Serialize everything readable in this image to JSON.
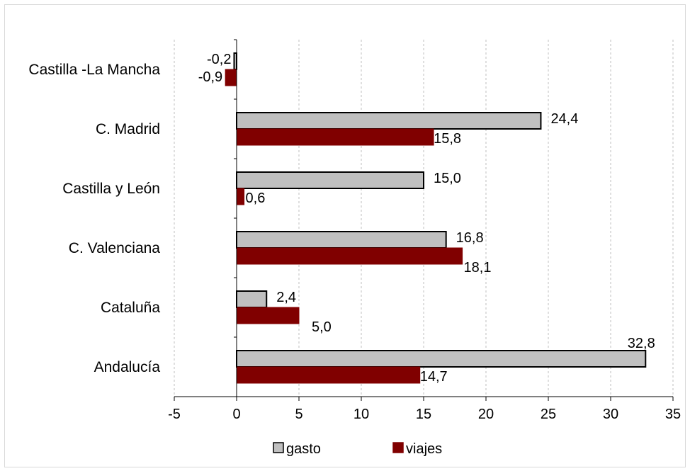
{
  "chart_data": {
    "type": "bar",
    "orientation": "horizontal",
    "categories": [
      "Castilla -La Mancha",
      "C. Madrid",
      "Castilla y León",
      "C. Valenciana",
      "Cataluña",
      "Andalucía"
    ],
    "series": [
      {
        "name": "gasto",
        "values": [
          -0.2,
          24.4,
          15.0,
          16.8,
          2.4,
          32.8
        ],
        "labels": [
          "-0,2",
          "24,4",
          "15,0",
          "16,8",
          "2,4",
          "32,8"
        ],
        "color": "#c0c0c0",
        "stroke": "#000000"
      },
      {
        "name": "viajes",
        "values": [
          -0.9,
          15.8,
          0.6,
          18.1,
          5.0,
          14.7
        ],
        "labels": [
          "-0,9",
          "15,8",
          "0,6",
          "18,1",
          "5,0",
          "14,7"
        ],
        "color": "#800000",
        "stroke": "#800000"
      }
    ],
    "xlim": [
      -5,
      35
    ],
    "xticks": [
      -5,
      0,
      5,
      10,
      15,
      20,
      25,
      30,
      35
    ],
    "xtick_labels": [
      "-5",
      "0",
      "5",
      "10",
      "15",
      "20",
      "25",
      "30",
      "35"
    ],
    "grid": "vertical-dashed",
    "legend_position": "bottom"
  }
}
